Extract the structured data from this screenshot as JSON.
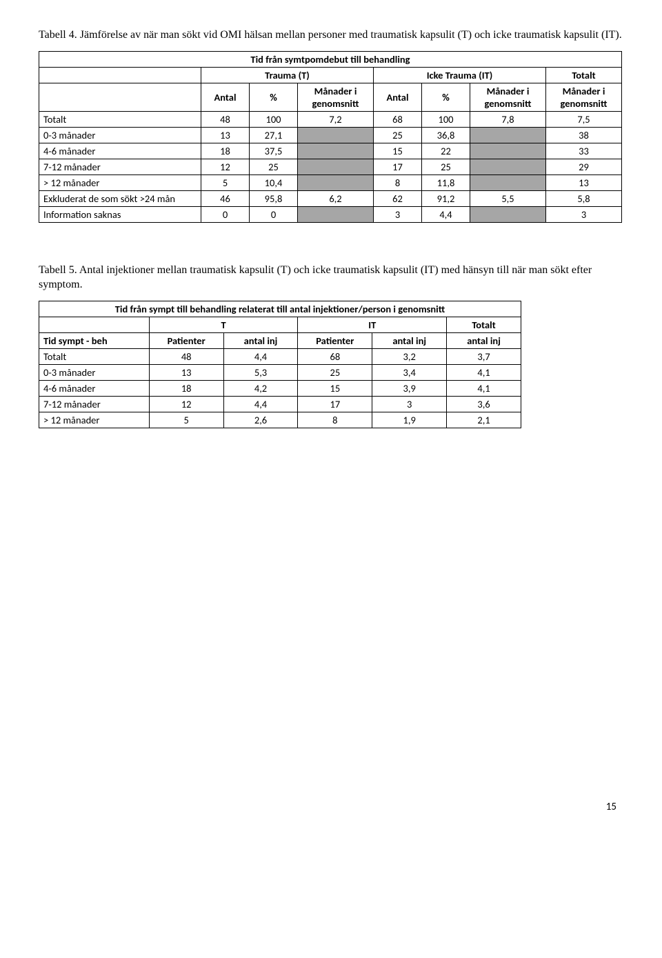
{
  "caption1": "Tabell 4. Jämförelse av när man sökt vid OMI hälsan mellan personer med traumatisk kapsulit (T) och icke traumatisk kapsulit (IT).",
  "table1": {
    "banner": "Tid från symtpomdebut till behandling",
    "group_headers": {
      "trauma": "Trauma (T)",
      "icke": "Icke Trauma (IT)",
      "totalt": "Totalt"
    },
    "col_headers": {
      "antal": "Antal",
      "pct": "%",
      "mig": "Månader i genomsnitt"
    },
    "rows": [
      {
        "label": "Totalt",
        "a": "48",
        "p": "100",
        "m": "7,2",
        "a2": "68",
        "p2": "100",
        "m2": "7,8",
        "tot": "7,5",
        "shade": false
      },
      {
        "label": "0-3 månader",
        "a": "13",
        "p": "27,1",
        "m": "",
        "a2": "25",
        "p2": "36,8",
        "m2": "",
        "tot": "38",
        "shade": true
      },
      {
        "label": "4-6 månader",
        "a": "18",
        "p": "37,5",
        "m": "",
        "a2": "15",
        "p2": "22",
        "m2": "",
        "tot": "33",
        "shade": true
      },
      {
        "label": "7-12 månader",
        "a": "12",
        "p": "25",
        "m": "",
        "a2": "17",
        "p2": "25",
        "m2": "",
        "tot": "29",
        "shade": true
      },
      {
        "label": "> 12 månader",
        "a": "5",
        "p": "10,4",
        "m": "",
        "a2": "8",
        "p2": "11,8",
        "m2": "",
        "tot": "13",
        "shade": true
      },
      {
        "label": "Exkluderat de som sökt >24 mån",
        "a": "46",
        "p": "95,8",
        "m": "6,2",
        "a2": "62",
        "p2": "91,2",
        "m2": "5,5",
        "tot": "5,8",
        "shade": false
      },
      {
        "label": "Information saknas",
        "a": "0",
        "p": "0",
        "m": "",
        "a2": "3",
        "p2": "4,4",
        "m2": "",
        "tot": "3",
        "shade": true
      }
    ]
  },
  "caption2": "Tabell 5. Antal injektioner mellan traumatisk kapsulit (T) och icke traumatisk kapsulit (IT) med hänsyn till när man sökt efter symptom.",
  "table2": {
    "banner": "Tid från sympt till behandling relaterat till antal injektioner/person i genomsnitt",
    "group_headers": {
      "t": "T",
      "it": "IT",
      "totalt": "Totalt"
    },
    "col_headers": {
      "rowhead": "Tid sympt - beh",
      "pat": "Patienter",
      "inj": "antal inj"
    },
    "rows": [
      {
        "label": "Totalt",
        "p1": "48",
        "i1": "4,4",
        "p2": "68",
        "i2": "3,2",
        "tot": "3,7"
      },
      {
        "label": "0-3 månader",
        "p1": "13",
        "i1": "5,3",
        "p2": "25",
        "i2": "3,4",
        "tot": "4,1"
      },
      {
        "label": "4-6 månader",
        "p1": "18",
        "i1": "4,2",
        "p2": "15",
        "i2": "3,9",
        "tot": "4,1"
      },
      {
        "label": "7-12 månader",
        "p1": "12",
        "i1": "4,4",
        "p2": "17",
        "i2": "3",
        "tot": "3,6"
      },
      {
        "label": "> 12 månader",
        "p1": "5",
        "i1": "2,6",
        "p2": "8",
        "i2": "1,9",
        "tot": "2,1"
      }
    ]
  },
  "page_number": "15"
}
